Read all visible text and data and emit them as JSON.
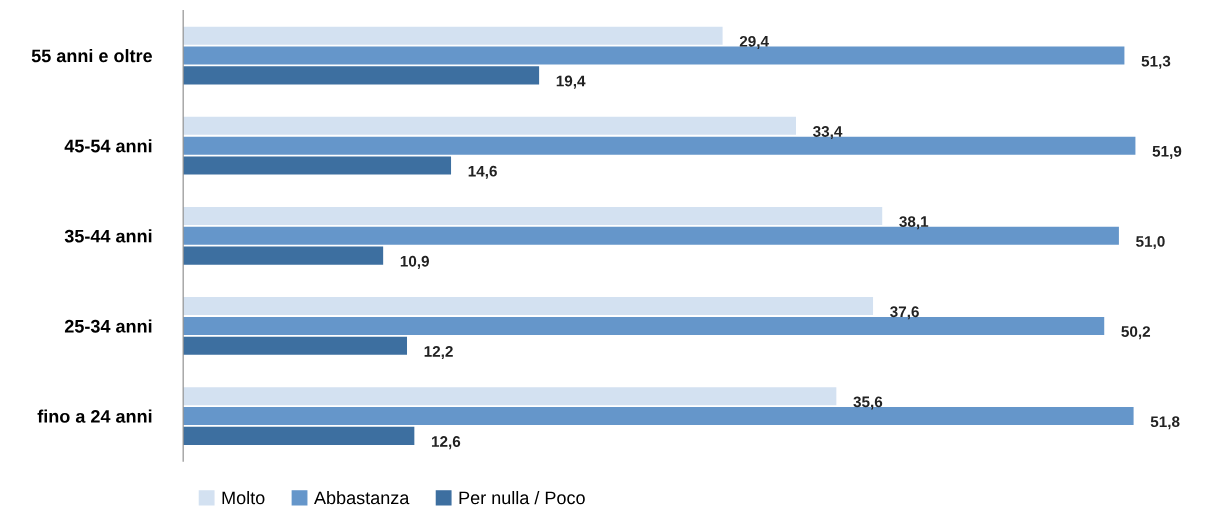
{
  "chart_data": {
    "type": "bar",
    "orientation": "horizontal",
    "categories": [
      "55 anni e oltre",
      "45-54 anni",
      "35-44 anni",
      "25-34 anni",
      "fino a 24 anni"
    ],
    "series": [
      {
        "name": "Molto",
        "color": "#d3e1f1",
        "values": [
          29.4,
          33.4,
          38.1,
          37.6,
          35.6
        ],
        "value_labels": [
          "29,4",
          "33,4",
          "38,1",
          "37,6",
          "35,6"
        ]
      },
      {
        "name": "Abbastanza",
        "color": "#6596ca",
        "values": [
          51.3,
          51.9,
          51.0,
          50.2,
          51.8
        ],
        "value_labels": [
          "51,3",
          "51,9",
          "51,0",
          "50,2",
          "51,8"
        ]
      },
      {
        "name": "Per nulla / Poco",
        "color": "#3d6fa0",
        "values": [
          19.4,
          14.6,
          10.9,
          12.2,
          12.6
        ],
        "value_labels": [
          "19,4",
          "14,6",
          "10,9",
          "12,2",
          "12,6"
        ]
      }
    ],
    "legend": "bottom left",
    "grid": false,
    "tick_labels": "y"
  }
}
